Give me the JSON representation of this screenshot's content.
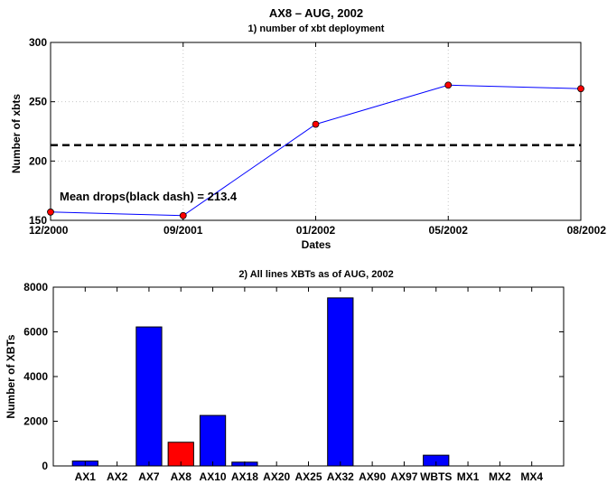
{
  "chart_data": [
    {
      "type": "line",
      "title": "AX8 – AUG, 2002",
      "subtitle": "1) number of xbt deployment",
      "xlabel": "Dates",
      "ylabel": "Number of xbts",
      "x": [
        "12/2000",
        "09/2001",
        "01/2002",
        "05/2002",
        "08/2002"
      ],
      "values": [
        157,
        154,
        231,
        264,
        261
      ],
      "ylim": [
        150,
        300
      ],
      "yticks": [
        "150",
        "200",
        "250",
        "300"
      ],
      "mean": 213.4,
      "annotation": "Mean drops(black dash) = 213.4",
      "grid": true,
      "line_color": "#0000ff",
      "marker_color": "#ff0000",
      "mean_color": "#000000"
    },
    {
      "type": "bar",
      "title": "2) All lines XBTs as of AUG, 2002",
      "xlabel": "",
      "ylabel": "Number of XBTs",
      "categories": [
        "AX1",
        "AX2",
        "AX7",
        "AX8",
        "AX10",
        "AX18",
        "AX20",
        "AX25",
        "AX32",
        "AX90",
        "AX97",
        "WBTS",
        "MX1",
        "MX2",
        "MX4"
      ],
      "values": [
        220,
        0,
        6220,
        1060,
        2260,
        170,
        0,
        0,
        7520,
        0,
        0,
        480,
        0,
        0,
        0
      ],
      "ylim": [
        0,
        8000
      ],
      "yticks": [
        "0",
        "2000",
        "4000",
        "6000",
        "8000"
      ],
      "highlight": "AX8",
      "bar_color": "#0000ff",
      "highlight_color": "#ff0000"
    }
  ]
}
